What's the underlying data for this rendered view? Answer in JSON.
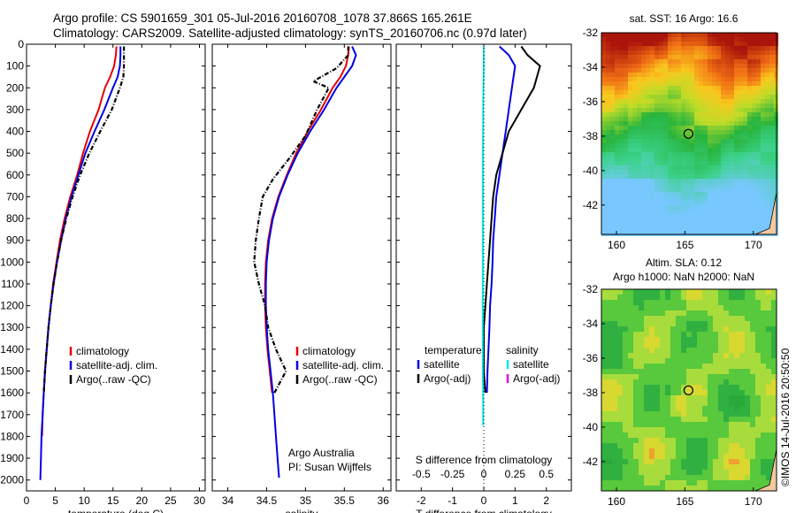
{
  "title": {
    "line1": "Argo profile: CS 5901659_301 05-Jul-2016 20160708_1078 37.866S 165.261E",
    "line2": "Climatology: CARS2009. Satellite-adjusted climatology: synTS_20160706.nc (0.97d later)"
  },
  "colors": {
    "climatology": "#e60000",
    "satellite": "#0000e6",
    "argo": "#000000",
    "salinity_sat": "#00e6e6",
    "salinity_argo": "#e600e6"
  },
  "chart_data": [
    {
      "id": "temperature",
      "type": "line",
      "xlabel": "temperature (deg C)",
      "ylabel": "",
      "xlim": [
        0,
        31
      ],
      "ylim": [
        2050,
        0
      ],
      "xticks": [
        0,
        5,
        10,
        15,
        20,
        25,
        30
      ],
      "yticks": [
        0,
        100,
        200,
        300,
        400,
        500,
        600,
        700,
        800,
        900,
        1000,
        1100,
        1200,
        1300,
        1400,
        1500,
        1600,
        1700,
        1800,
        1900,
        2000
      ],
      "legend": [
        "climatology",
        "satellite-adj. clim.",
        "Argo(..raw -QC)"
      ],
      "series": [
        {
          "name": "climatology",
          "color": "#e60000",
          "x": [
            15.6,
            15.5,
            15.2,
            14.5,
            13.6,
            12.5,
            11.0,
            9.8,
            8.8,
            7.6,
            6.6,
            5.8,
            5.2,
            4.6,
            4.2,
            3.8,
            3.5,
            3.2,
            3.0,
            2.8,
            2.7
          ],
          "y": [
            10,
            50,
            100,
            150,
            200,
            300,
            400,
            500,
            600,
            700,
            800,
            900,
            1000,
            1100,
            1200,
            1300,
            1400,
            1500,
            1600,
            1700,
            1800
          ]
        },
        {
          "name": "satellite-adj. clim.",
          "color": "#0000e6",
          "x": [
            16.3,
            16.3,
            16.2,
            15.8,
            15.0,
            13.5,
            11.8,
            10.2,
            9.0,
            7.8,
            6.8,
            6.0,
            5.3,
            4.7,
            4.2,
            3.8,
            3.5,
            3.2,
            3.0,
            2.8,
            2.6,
            2.5,
            2.4
          ],
          "y": [
            10,
            50,
            100,
            150,
            200,
            300,
            400,
            500,
            600,
            700,
            800,
            900,
            1000,
            1100,
            1200,
            1300,
            1400,
            1500,
            1600,
            1700,
            1800,
            1900,
            2000
          ]
        },
        {
          "name": "Argo(..raw -QC)",
          "color": "#000000",
          "x": [
            16.9,
            16.9,
            16.9,
            16.8,
            16.2,
            14.8,
            12.8,
            10.9,
            9.3,
            8.0,
            6.9,
            6.0,
            5.3,
            4.7,
            4.2,
            3.8,
            3.5,
            3.2,
            3.0
          ],
          "y": [
            10,
            50,
            100,
            150,
            200,
            300,
            400,
            500,
            600,
            700,
            800,
            900,
            1000,
            1100,
            1200,
            1300,
            1400,
            1500,
            1600
          ]
        }
      ]
    },
    {
      "id": "salinity",
      "type": "line",
      "xlabel": "salinity",
      "xlim": [
        33.8,
        36.1
      ],
      "ylim": [
        2050,
        0
      ],
      "xticks": [
        34,
        34.5,
        35,
        35.5,
        36
      ],
      "legend": [
        "climatology",
        "satellite-adj. clim.",
        "Argo(..raw -QC)"
      ],
      "credit": [
        "Argo Australia",
        "PI: Susan Wijffels"
      ],
      "series": [
        {
          "name": "climatology",
          "color": "#e60000",
          "x": [
            35.56,
            35.55,
            35.52,
            35.45,
            35.35,
            35.2,
            35.03,
            34.88,
            34.76,
            34.65,
            34.57,
            34.52,
            34.49,
            34.48,
            34.48,
            34.49,
            34.51,
            34.54,
            34.57
          ],
          "y": [
            10,
            50,
            100,
            150,
            200,
            300,
            400,
            500,
            600,
            700,
            800,
            900,
            1000,
            1100,
            1200,
            1300,
            1400,
            1500,
            1600
          ]
        },
        {
          "name": "satellite-adj. clim.",
          "color": "#0000e6",
          "x": [
            35.6,
            35.65,
            35.6,
            35.5,
            35.4,
            35.24,
            35.06,
            34.9,
            34.77,
            34.66,
            34.58,
            34.53,
            34.5,
            34.49,
            34.49,
            34.5,
            34.52,
            34.55,
            34.58,
            34.6,
            34.62,
            34.64,
            34.66
          ],
          "y": [
            10,
            50,
            100,
            150,
            200,
            300,
            400,
            500,
            600,
            700,
            800,
            900,
            1000,
            1100,
            1200,
            1300,
            1400,
            1500,
            1600,
            1700,
            1800,
            1900,
            1990
          ]
        },
        {
          "name": "Argo(..raw -QC)",
          "color": "#000000",
          "x": [
            35.55,
            35.55,
            35.4,
            35.1,
            35.3,
            35.15,
            35.0,
            34.8,
            34.58,
            34.45,
            34.4,
            34.36,
            34.34,
            34.4,
            34.48,
            34.52,
            34.62,
            34.75,
            34.6
          ],
          "y": [
            10,
            50,
            110,
            170,
            200,
            300,
            420,
            520,
            620,
            700,
            800,
            900,
            1000,
            1100,
            1200,
            1300,
            1400,
            1500,
            1600
          ]
        }
      ]
    },
    {
      "id": "differences",
      "type": "line",
      "xlabel": "T difference from climatology",
      "xlabel_top": "S difference from climatology",
      "xlim": [
        -2.8,
        2.8
      ],
      "ylim": [
        2050,
        0
      ],
      "xticks": [
        -2,
        -1,
        0,
        1,
        2
      ],
      "xticks_s": [
        -0.5,
        -0.25,
        0,
        0.25,
        0.5
      ],
      "xticklabels_s": [
        "-0.5",
        "-0.25",
        "0",
        "0.25",
        "0.5"
      ],
      "legend": {
        "temperature": "temperature",
        "salinity": "salinity",
        "satellite": "satellite",
        "argo": "Argo(-adj)"
      },
      "series": [
        {
          "name": "temperature satellite",
          "color": "#0000e6",
          "x": [
            0.5,
            0.8,
            1.0,
            0.9,
            0.8,
            0.7,
            0.6,
            0.5,
            0.4,
            0.35,
            0.3,
            0.28,
            0.25,
            0.2,
            0.18,
            0.15,
            0.12,
            0.1
          ],
          "y": [
            10,
            50,
            100,
            200,
            300,
            400,
            500,
            600,
            700,
            800,
            900,
            1000,
            1100,
            1200,
            1300,
            1400,
            1500,
            1600
          ]
        },
        {
          "name": "temperature Argo(-adj)",
          "color": "#000000",
          "x": [
            1.2,
            1.4,
            1.8,
            1.6,
            1.2,
            0.8,
            0.6,
            0.4,
            0.3,
            0.25,
            0.2,
            0.15,
            0.1,
            0.05,
            0.0,
            0.0,
            0.0,
            0.05
          ],
          "y": [
            10,
            50,
            100,
            200,
            300,
            400,
            500,
            600,
            700,
            800,
            900,
            1000,
            1100,
            1200,
            1300,
            1400,
            1500,
            1600
          ]
        },
        {
          "name": "salinity satellite",
          "color": "#00e6e6",
          "x": [
            0.0,
            0.0,
            -0.01,
            -0.02,
            -0.02,
            -0.03,
            -0.03,
            -0.03,
            -0.03,
            -0.03,
            -0.03,
            -0.03,
            -0.03,
            -0.03,
            -0.03,
            -0.03,
            -0.02,
            -0.02,
            -0.02
          ],
          "y": [
            10,
            100,
            200,
            300,
            400,
            500,
            600,
            700,
            800,
            900,
            1000,
            1100,
            1200,
            1300,
            1400,
            1500,
            1600,
            1700,
            1750
          ]
        }
      ]
    }
  ],
  "maps": [
    {
      "id": "sst",
      "title": "sat. SST: 16 Argo: 16.6",
      "subtitle": "",
      "xticks": [
        160,
        165,
        170
      ],
      "yticks": [
        -32,
        -34,
        -36,
        -38,
        -40,
        -42
      ],
      "xlim": [
        158.9,
        171.7
      ],
      "ylim": [
        -43.7,
        -32
      ],
      "profile_location": [
        165.261,
        -37.866
      ]
    },
    {
      "id": "sla",
      "title": "Altim. SLA: 0.12",
      "subtitle": "Argo h1000: NaN h2000: NaN",
      "xticks": [
        160,
        165,
        170
      ],
      "yticks": [
        -32,
        -34,
        -36,
        -38,
        -40,
        -42
      ],
      "xlim": [
        158.9,
        171.7
      ],
      "ylim": [
        -43.7,
        -32
      ],
      "profile_location": [
        165.261,
        -37.866
      ]
    }
  ],
  "stamp": "©IMOS 14-Jul-2016 20:50:50"
}
